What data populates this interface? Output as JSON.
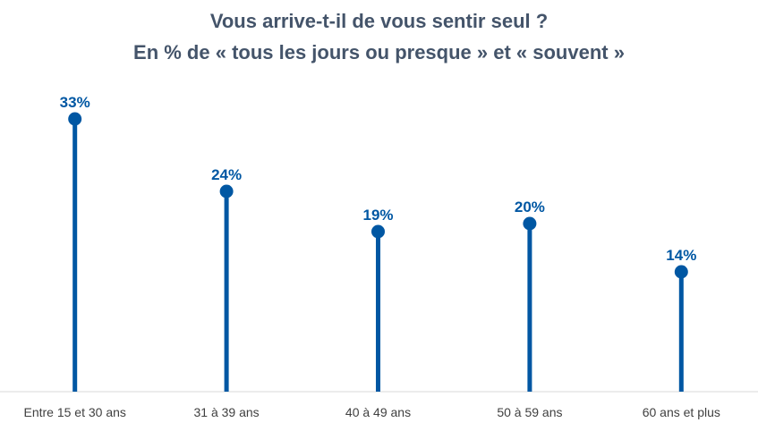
{
  "chart_data": {
    "type": "lollipop",
    "title_lines": [
      "Vous arrive-t-il de vous sentir seul ?",
      "En % de « tous les jours ou presque » et « souvent »"
    ],
    "categories": [
      "Entre 15 et 30 ans",
      "31 à 39 ans",
      "40 à 49 ans",
      "50 à 59 ans",
      "60 ans et plus"
    ],
    "values": [
      33,
      24,
      19,
      20,
      14
    ],
    "data_labels": [
      "33%",
      "24%",
      "19%",
      "20%",
      "14%"
    ],
    "value_unit": "%",
    "ylim": [
      0,
      35
    ],
    "grid": false,
    "legend": "none",
    "colors": {
      "series": "#0057a3",
      "title": "#44546a",
      "axis": "#d9d9d9",
      "category_text": "#404040"
    }
  }
}
